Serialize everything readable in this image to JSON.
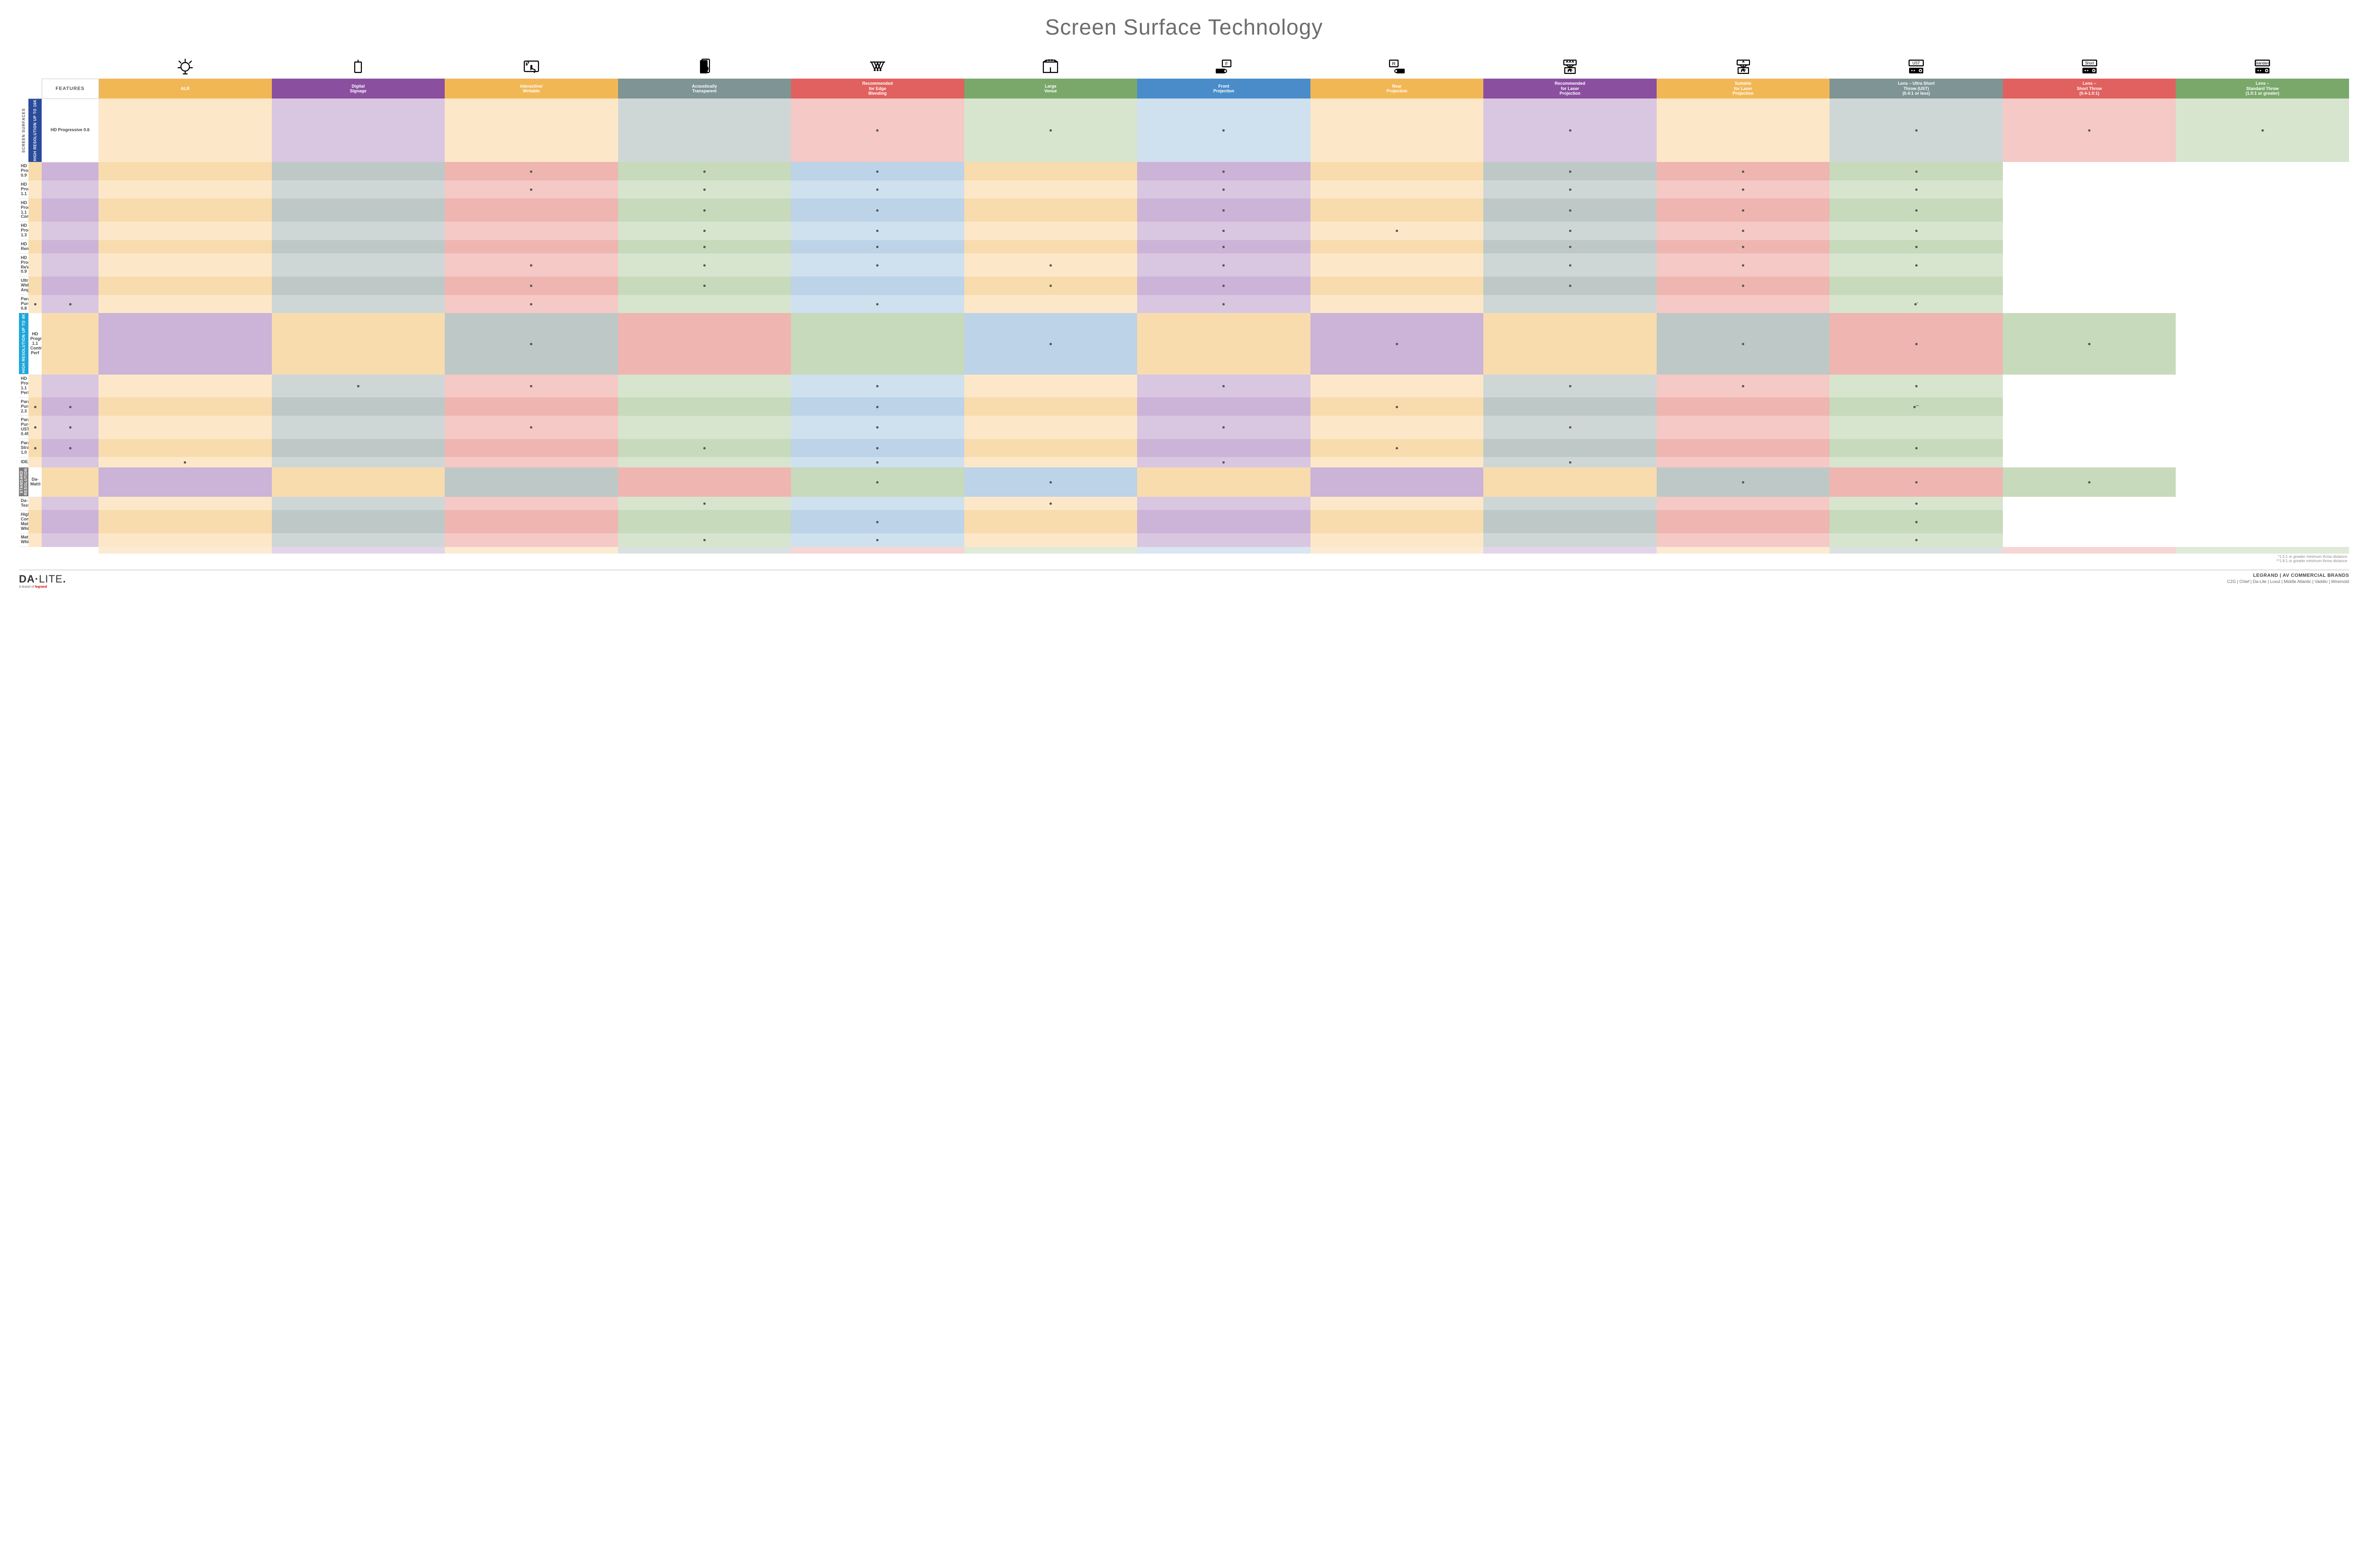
{
  "title": "Screen Surface Technology",
  "features_header": "FEATURES",
  "columns": [
    {
      "key": "alr",
      "label": "ALR",
      "color": "#f2b755",
      "icon": "bulb"
    },
    {
      "key": "signage",
      "label": "Digital\nSignage",
      "color": "#8b4fa0",
      "icon": "signage"
    },
    {
      "key": "interactive",
      "label": "Interactive/\nWritable",
      "color": "#f2b755",
      "icon": "touch"
    },
    {
      "key": "acoustic",
      "label": "Acoustically\nTransparent",
      "color": "#7f9494",
      "icon": "speaker"
    },
    {
      "key": "edge",
      "label": "Recommended\nfor Edge\nBlending",
      "color": "#e0615f",
      "icon": "edge"
    },
    {
      "key": "large",
      "label": "Large\nVenue",
      "color": "#7aa86b",
      "icon": "venue"
    },
    {
      "key": "front",
      "label": "Front\nProjection",
      "color": "#4a8cc9",
      "icon": "front"
    },
    {
      "key": "rear",
      "label": "Rear\nProjection",
      "color": "#f2b755",
      "icon": "rear"
    },
    {
      "key": "reclaser",
      "label": "Recommended\nfor Laser\nProjection",
      "color": "#8b4fa0",
      "icon": "laser3"
    },
    {
      "key": "suitlaser",
      "label": "Suitable\nfor Laser\nProjection",
      "color": "#f2b755",
      "icon": "laser1"
    },
    {
      "key": "ust",
      "label": "Lens – Ultra Short\nThrow (UST)\n(0.4:1 or less)",
      "color": "#7f9494",
      "icon": "proj",
      "iconTag": "UST"
    },
    {
      "key": "short",
      "label": "Lens –\nShort Throw\n(0.4-1.0:1)",
      "color": "#e0615f",
      "icon": "proj",
      "iconTag": "Short"
    },
    {
      "key": "std",
      "label": "Lens –\nStandard Throw\n(1.0:1 or greater)",
      "color": "#7aa86b",
      "icon": "proj",
      "iconTag": "Standard"
    }
  ],
  "cell_tints": {
    "alr": [
      "#fce8c8",
      "#f8dcae"
    ],
    "signage": [
      "#d9c6e1",
      "#ccb3d8"
    ],
    "interactive": [
      "#fce8c8",
      "#f8dcae"
    ],
    "acoustic": [
      "#cfd7d6",
      "#bec9c7"
    ],
    "edge": [
      "#f4c9c6",
      "#efb5b1"
    ],
    "large": [
      "#d7e5cf",
      "#c7dabb"
    ],
    "front": [
      "#cfe0ef",
      "#bcd3e8"
    ],
    "rear": [
      "#fce8c8",
      "#f8dcae"
    ],
    "reclaser": [
      "#d9c6e1",
      "#ccb3d8"
    ],
    "suitlaser": [
      "#fce8c8",
      "#f8dcae"
    ],
    "ust": [
      "#cfd7d6",
      "#bec9c7"
    ],
    "short": [
      "#f4c9c6",
      "#efb5b1"
    ],
    "std": [
      "#d7e5cf",
      "#c7dabb"
    ]
  },
  "side_outer_label": "SCREEN SURFACES",
  "groups": [
    {
      "key": "hr16k",
      "label": "HIGH RESOLUTION UP TO 16K",
      "color": "#2a4b9b"
    },
    {
      "key": "hr4k",
      "label": "HIGH RESOLUTION UP TO 4K",
      "color": "#1fa6d9"
    },
    {
      "key": "sr",
      "label": "STANDARD\nRESOLUTION",
      "color": "#7b7b7b"
    }
  ],
  "rows": [
    {
      "group": "hr16k",
      "label": "HD Progressive 0.6",
      "dots": {
        "edge": "•",
        "large": "•",
        "front": "•",
        "reclaser": "•",
        "ust": "•",
        "short": "•",
        "std": "•"
      }
    },
    {
      "group": "hr16k",
      "label": "HD Progressive 0.9",
      "dots": {
        "edge": "•",
        "large": "•",
        "front": "•",
        "reclaser": "•",
        "ust": "•",
        "short": "•",
        "std": "•"
      }
    },
    {
      "group": "hr16k",
      "label": "HD Progressive 1.1",
      "dots": {
        "edge": "•",
        "large": "•",
        "front": "•",
        "reclaser": "•",
        "ust": "•",
        "short": "•",
        "std": "•"
      }
    },
    {
      "group": "hr16k",
      "label": "HD Progressive\n1.1 Contrast",
      "dots": {
        "large": "•",
        "front": "•",
        "reclaser": "•",
        "ust": "•",
        "short": "•",
        "std": "•"
      }
    },
    {
      "group": "hr16k",
      "label": "HD Progressive 1.3",
      "dots": {
        "large": "•",
        "front": "•",
        "reclaser": "•",
        "suitlaser": "•",
        "ust": "•",
        "short": "•",
        "std": "•"
      }
    },
    {
      "group": "hr16k",
      "label": "HD Rental",
      "dots": {
        "large": "•",
        "front": "•",
        "reclaser": "•",
        "ust": "•",
        "short": "•",
        "std": "•"
      }
    },
    {
      "group": "hr16k",
      "label": "HD Progressive ReView 0.9",
      "dots": {
        "edge": "•",
        "large": "•",
        "front": "•",
        "rear": "•",
        "reclaser": "•",
        "ust": "•",
        "short": "•",
        "std": "•"
      }
    },
    {
      "group": "hr16k",
      "label": "Ultra Wide Angle",
      "dots": {
        "edge": "•",
        "large": "•",
        "rear": "•",
        "reclaser": "•",
        "ust": "•",
        "short": "•"
      }
    },
    {
      "group": "hr16k",
      "label": "Parallax® Pure 0.8",
      "dots": {
        "alr": "•",
        "signage": "•",
        "edge": "•",
        "front": "•",
        "reclaser": "•",
        "std": "•*"
      }
    },
    {
      "group": "hr4k",
      "label": "HD Progressive 1.1\nContrast Perf",
      "dots": {
        "acoustic": "•",
        "front": "•",
        "reclaser": "•",
        "ust": "•",
        "short": "•",
        "std": "•"
      }
    },
    {
      "group": "hr4k",
      "label": "HD Progressive 1.1 Perf",
      "dots": {
        "acoustic": "•",
        "edge": "•",
        "front": "•",
        "reclaser": "•",
        "ust": "•",
        "short": "•",
        "std": "•"
      }
    },
    {
      "group": "hr4k",
      "label": "Parallax Pure 2.3",
      "dots": {
        "alr": "•",
        "signage": "•",
        "front": "•",
        "suitlaser": "•",
        "std": "•**"
      }
    },
    {
      "group": "hr4k",
      "label": "Parallax Pure UST 0.45",
      "dots": {
        "alr": "•",
        "signage": "•",
        "edge": "•",
        "front": "•",
        "reclaser": "•",
        "ust": "•"
      }
    },
    {
      "group": "hr4k",
      "label": "Parallax Stratos 1.0",
      "dots": {
        "alr": "•",
        "signage": "•",
        "large": "•",
        "front": "•",
        "suitlaser": "•",
        "std": "•"
      }
    },
    {
      "group": "hr4k",
      "label": "IDEA™",
      "dots": {
        "interactive": "•",
        "front": "•",
        "reclaser": "•",
        "ust": "•"
      }
    },
    {
      "group": "sr",
      "label": "Da-Mat®",
      "dots": {
        "large": "•",
        "front": "•",
        "ust": "•",
        "short": "•",
        "std": "•"
      }
    },
    {
      "group": "sr",
      "label": "Da-Tex®",
      "dots": {
        "large": "•",
        "rear": "•",
        "std": "•"
      }
    },
    {
      "group": "sr",
      "label": "High Contrast\nMatte White",
      "dots": {
        "front": "•",
        "std": "•"
      }
    },
    {
      "group": "sr",
      "label": "Matte White",
      "dots": {
        "large": "•",
        "front": "•",
        "std": "•"
      }
    }
  ],
  "footnotes": [
    "*1.5:1 or greater minimum throw distance",
    "**1.8:1 or greater minimum throw distance"
  ],
  "footer": {
    "brand_main": "DA·LITE.",
    "brand_sub_prefix": "A brand of ",
    "brand_sub_logo": "legrand",
    "right_top": "LEGRAND | AV COMMERCIAL BRANDS",
    "right_brands": "C2G  |  Chief  |  Da-Lite  |  Luxul  |  Middle Atlantic  |  Vaddio  |  Wiremold"
  }
}
